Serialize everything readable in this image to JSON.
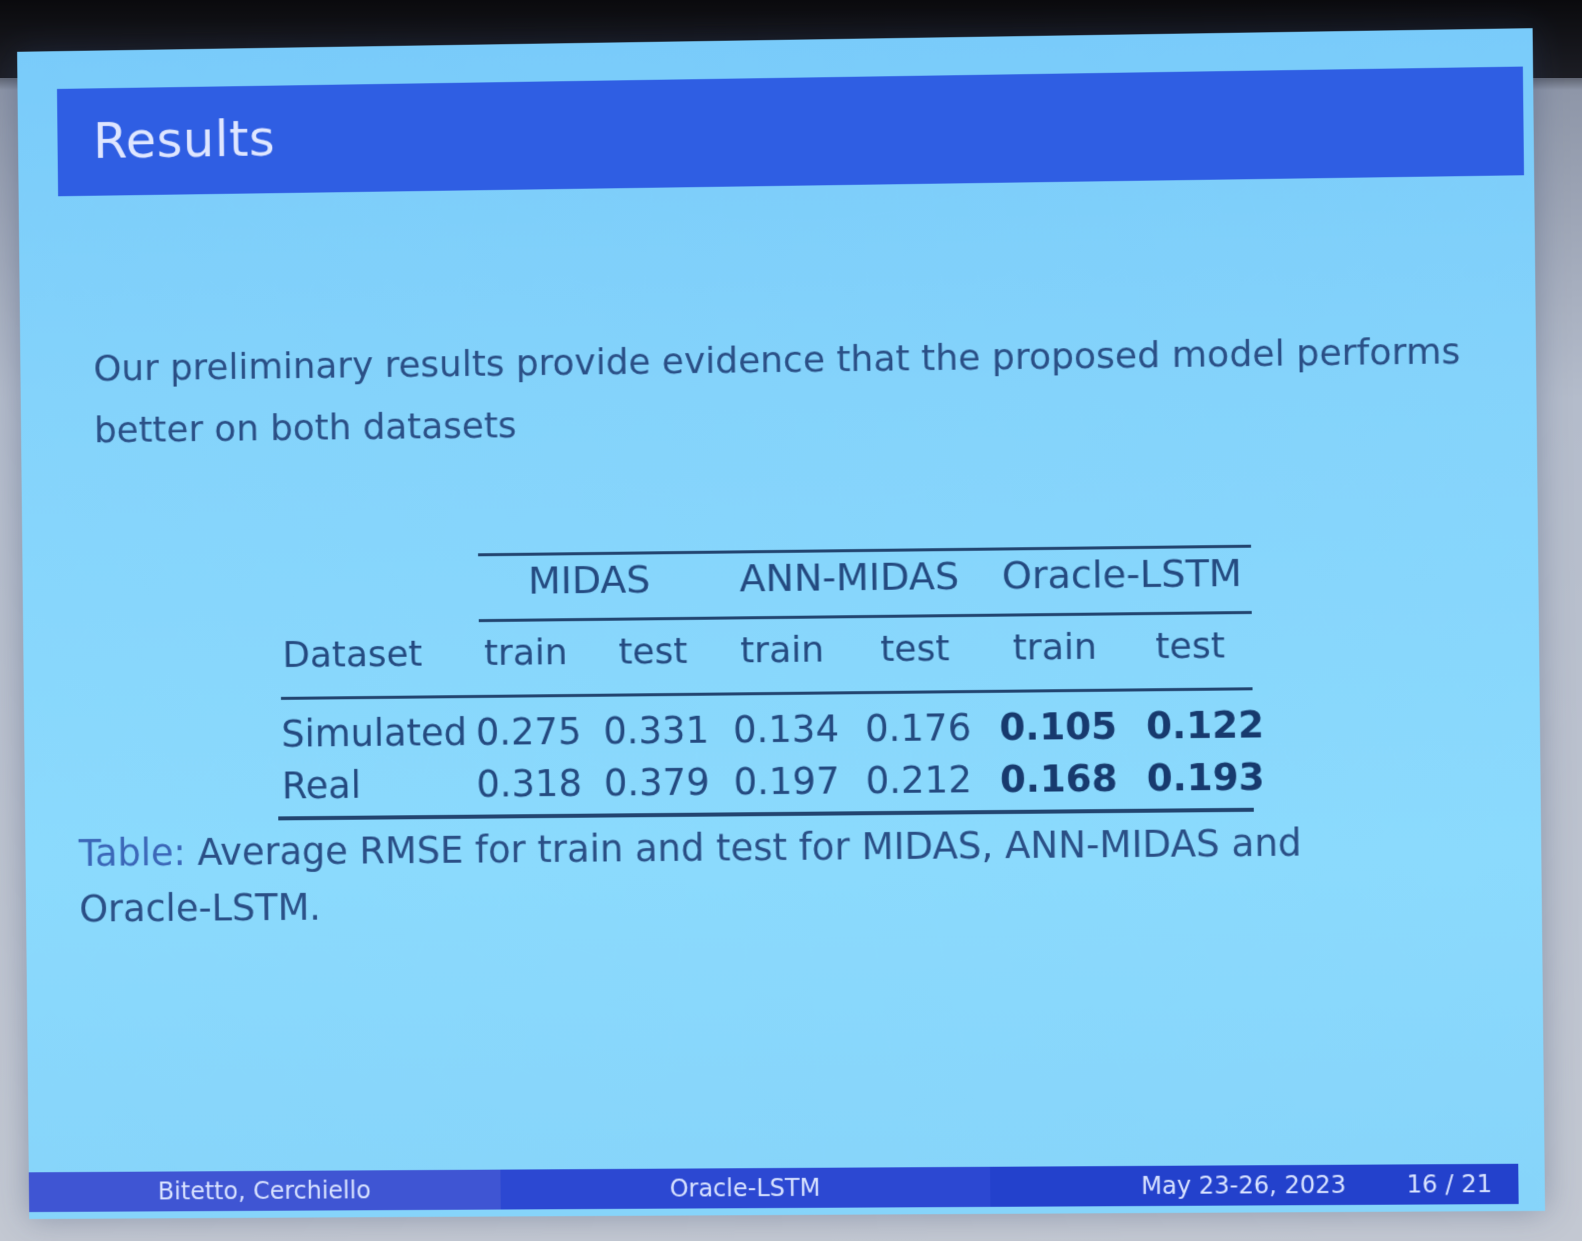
{
  "slide": {
    "title": "Results",
    "body": "Our preliminary results provide evidence that the proposed model performs better on both datasets",
    "table": {
      "groups": [
        "MIDAS",
        "ANN-MIDAS",
        "Oracle-LSTM"
      ],
      "row_header": "Dataset",
      "subheaders": [
        "train",
        "test",
        "train",
        "test",
        "train",
        "test"
      ],
      "rows": [
        {
          "name": "Simulated",
          "values": [
            "0.275",
            "0.331",
            "0.134",
            "0.176",
            "0.105",
            "0.122"
          ]
        },
        {
          "name": "Real",
          "values": [
            "0.318",
            "0.379",
            "0.197",
            "0.212",
            "0.168",
            "0.193"
          ]
        }
      ]
    },
    "caption_label": "Table:",
    "caption_text": " Average RMSE for train and test for MIDAS, ANN-MIDAS and Oracle-LSTM.",
    "footer": {
      "authors": "Bitetto, Cerchiello",
      "short_title": "Oracle-LSTM",
      "date": "May 23-26, 2023",
      "page": "16 / 21"
    }
  },
  "colors": {
    "title_bar": "#2f5ee3",
    "slide_background": "#84d3fb",
    "text": "#2a4f86"
  }
}
